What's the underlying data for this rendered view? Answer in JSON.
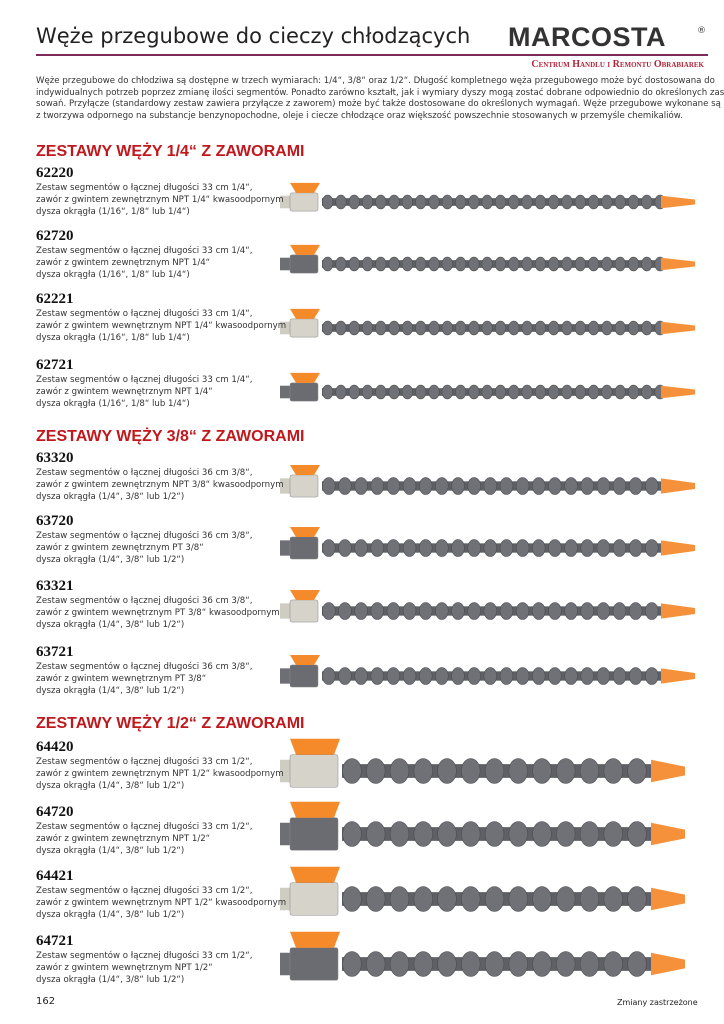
{
  "header": {
    "title": "Węże przegubowe do cieczy chłodzących",
    "brand": "MARCOSTA",
    "registered": "®",
    "subtitle": "Centrum Handlu i Remontu Obrabiarek"
  },
  "intro": {
    "lines": [
      "Węże przegubowe do chłodziwa są dostępne w trzech wymiarach: 1/4“, 3/8“ oraz 1/2“. Długość kompletnego węża przegubowego może być dostosowana do",
      "indywidualnych potrzeb poprzez zmianę ilości segmentów. Ponadto zarówno kształt, jak i wymiary dyszy mogą zostać dobrane odpowiednio do określonych zasto-",
      "sowań. Przyłącze (standardowy zestaw zawiera przyłącze z zaworem) może być także dostosowane do określonych wymagań. Węże przegubowe wykonane są",
      "z tworzywa odpornego na substancje benzynopochodne, oleje i ciecze chłodzące oraz większość powszechnie stosowanych w przemyśle chemikaliów."
    ]
  },
  "sections": [
    {
      "title": "ZESTAWY WĘŻY  1/4“ Z ZAWORAMI",
      "products": [
        {
          "code": "62220",
          "lines": [
            "Zestaw segmentów o łącznej długości 33 cm 1/4“,",
            "zawór z gwintem zewnętrznym NPT 1/4“ kwasoodpornym",
            "dysza okrągła (1/16“, 1/8“ lub 1/4“)"
          ]
        },
        {
          "code": "62720",
          "lines": [
            "Zestaw segmentów o łącznej długości 33 cm 1/4“,",
            "zawór z gwintem zewnętrznym NPT 1/4“",
            "dysza okrągła (1/16“, 1/8“ lub 1/4“)"
          ]
        },
        {
          "code": "62221",
          "lines": [
            "Zestaw segmentów o łącznej długości 33 cm 1/4“,",
            "zawór z gwintem wewnętrznym NPT 1/4“ kwasoodpornym",
            "dysza okrągła (1/16“, 1/8“ lub 1/4“)"
          ]
        },
        {
          "code": "62721",
          "lines": [
            "Zestaw segmentów o łącznej długości 33 cm 1/4“,",
            "zawór z gwintem wewnętrznym NPT 1/4“",
            "dysza okrągła (1/16“, 1/8“ lub 1/4“)"
          ]
        }
      ]
    },
    {
      "title": "ZESTAWY WĘŻY  3/8“ Z ZAWORAMI",
      "products": [
        {
          "code": "63320",
          "lines": [
            "Zestaw segmentów o łącznej długości 36 cm 3/8“,",
            "zawór z gwintem zewnętrznym NPT 3/8“ kwasoodpornym",
            "dysza okrągła (1/4“, 3/8“ lub 1/2“)"
          ]
        },
        {
          "code": "63720",
          "lines": [
            "Zestaw segmentów o łącznej długości 36 cm 3/8“,",
            "zawór z gwintem zewnętrznym PT 3/8“",
            "dysza okrągła (1/4“, 3/8“ lub 1/2“)"
          ]
        },
        {
          "code": "63321",
          "lines": [
            "Zestaw segmentów o łącznej długości 36 cm 3/8“,",
            "zawór z gwintem wewnętrznym PT 3/8“ kwasoodpornym",
            "dysza okrągła (1/4“, 3/8“ lub 1/2“)"
          ]
        },
        {
          "code": "63721",
          "lines": [
            "Zestaw segmentów o łącznej długości 36 cm 3/8“,",
            "zawór z gwintem wewnętrznym PT 3/8“",
            "dysza okrągła (1/4“, 3/8“ lub 1/2“)"
          ]
        }
      ]
    },
    {
      "title": "ZESTAWY WĘŻY  1/2“ Z ZAWORAMI",
      "products": [
        {
          "code": "64420",
          "lines": [
            "Zestaw segmentów o łącznej długości 33 cm 1/2“,",
            "zawór z gwintem zewnętrznym NPT 1/2“ kwasoodpornym",
            "dysza okrągła (1/4“, 3/8“ lub 1/2“)"
          ]
        },
        {
          "code": "64720",
          "lines": [
            "Zestaw segmentów o łącznej długości 33 cm 1/2“,",
            "zawór z gwintem zewnętrznym NPT 1/2“",
            "dysza okrągła (1/4“, 3/8“ lub 1/2“)"
          ]
        },
        {
          "code": "64421",
          "lines": [
            "Zestaw segmentów o łącznej długości 33 cm 1/2“,",
            "zawór z gwintem wewnętrznym NPT 1/2“ kwasoodpornym",
            "dysza okrągła (1/4“, 3/8“ lub 1/2“)"
          ]
        },
        {
          "code": "64721",
          "lines": [
            "Zestaw segmentów o łącznej długości 33 cm 1/2“,",
            "zawór z gwintem wewnętrznym NPT 1/2“",
            "dysza okrągła (1/4“, 3/8“ lub 1/2“)"
          ]
        }
      ]
    }
  ],
  "footer": {
    "page": "162",
    "note": "Zmiany zastrzeżone"
  }
}
